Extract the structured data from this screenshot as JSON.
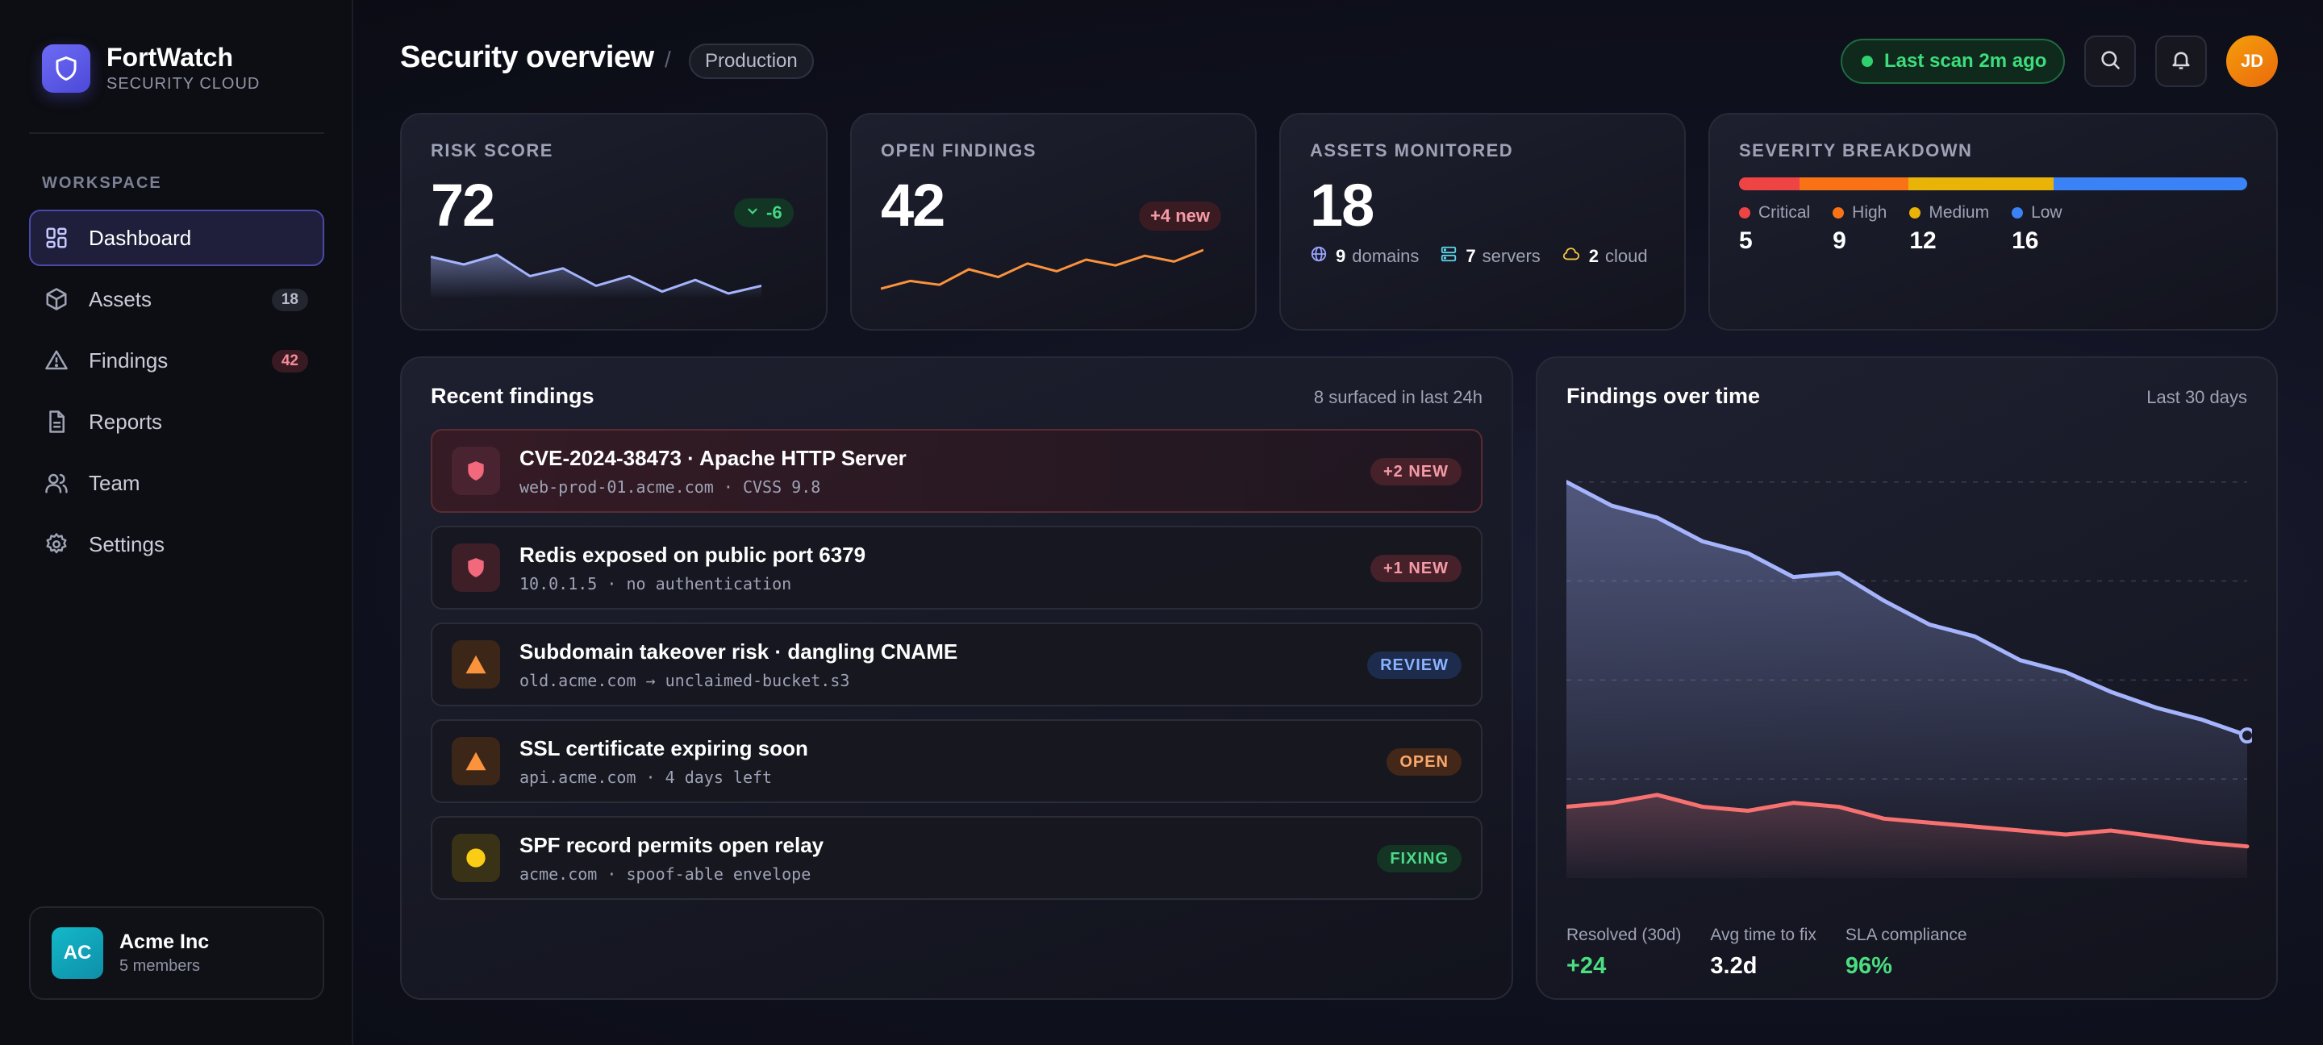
{
  "brand": {
    "name": "FortWatch",
    "subtitle": "SECURITY CLOUD"
  },
  "nav": {
    "section_title": "WORKSPACE",
    "items": [
      {
        "label": "Dashboard",
        "icon": "dashboard-icon",
        "active": true
      },
      {
        "label": "Assets",
        "icon": "cube-icon",
        "badge": "18"
      },
      {
        "label": "Findings",
        "icon": "warning-icon",
        "badge": "42"
      },
      {
        "label": "Reports",
        "icon": "document-icon"
      },
      {
        "label": "Team",
        "icon": "users-icon"
      },
      {
        "label": "Settings",
        "icon": "gear-icon"
      }
    ]
  },
  "org": {
    "initials": "AC",
    "name": "Acme Inc",
    "members": "5 members"
  },
  "header": {
    "title": "Security overview",
    "separator": "/",
    "environment": "Production",
    "scan_status": "Last scan 2m ago",
    "user_initials": "JD"
  },
  "stats": {
    "risk": {
      "label": "RISK SCORE",
      "value": "72",
      "delta": "-6",
      "trend": [
        60,
        52,
        62,
        40,
        48,
        30,
        40,
        24,
        36,
        22,
        30
      ]
    },
    "findings": {
      "label": "OPEN FINDINGS",
      "value": "42",
      "delta": "+4 new",
      "trend": [
        18,
        26,
        22,
        38,
        30,
        44,
        36,
        48,
        42,
        52,
        46,
        58
      ]
    },
    "assets": {
      "label": "ASSETS MONITORED",
      "value": "18",
      "items": [
        {
          "count": "9",
          "label": "domains",
          "icon": "globe-icon"
        },
        {
          "count": "7",
          "label": "servers",
          "icon": "server-icon"
        },
        {
          "count": "2",
          "label": "cloud",
          "icon": "cloud-icon"
        }
      ]
    },
    "severity": {
      "label": "SEVERITY BREAKDOWN",
      "items": [
        {
          "name": "Critical",
          "count": "5",
          "value": 5,
          "color": "#ef4444"
        },
        {
          "name": "High",
          "count": "9",
          "value": 9,
          "color": "#f97316"
        },
        {
          "name": "Medium",
          "count": "12",
          "value": 12,
          "color": "#eab308"
        },
        {
          "name": "Low",
          "count": "16",
          "value": 16,
          "color": "#3b82f6"
        }
      ]
    }
  },
  "recent": {
    "title": "Recent findings",
    "meta": "8 surfaced in last 24h",
    "items": [
      {
        "title": "CVE-2024-38473 · Apache HTTP Server",
        "detail": "web-prod-01.acme.com · CVSS 9.8",
        "tag": "+2 NEW",
        "icon": "shield-icon"
      },
      {
        "title": "Redis exposed on public port 6379",
        "detail": "10.0.1.5 · no authentication",
        "tag": "+1 NEW",
        "icon": "shield-icon"
      },
      {
        "title": "Subdomain takeover risk · dangling CNAME",
        "detail": "old.acme.com → unclaimed-bucket.s3",
        "tag": "REVIEW",
        "icon": "triangle-icon"
      },
      {
        "title": "SSL certificate expiring soon",
        "detail": "api.acme.com · 4 days left",
        "tag": "OPEN",
        "icon": "triangle-icon"
      },
      {
        "title": "SPF record permits open relay",
        "detail": "acme.com · spoof-able envelope",
        "tag": "FIXING",
        "icon": "circle-icon"
      }
    ]
  },
  "chart_data": {
    "type": "area",
    "title": "Findings over time",
    "subtitle": "Last 30 days",
    "xlabel": "",
    "ylabel": "",
    "grid": true,
    "series": [
      {
        "color": "#a5b4fc",
        "values": [
          100,
          94,
          91,
          85,
          82,
          76,
          77,
          70,
          64,
          61,
          55,
          52,
          47,
          43,
          40,
          36
        ]
      },
      {
        "color": "#f87171",
        "values": [
          18,
          19,
          21,
          18,
          17,
          19,
          18,
          15,
          14,
          13,
          12,
          11,
          12,
          10.5,
          9,
          8
        ]
      }
    ],
    "ylim": [
      0,
      115
    ]
  },
  "chart_stats": [
    {
      "label": "Resolved (30d)",
      "value": "+24",
      "color": "#4ade80"
    },
    {
      "label": "Avg time to fix",
      "value": "3.2d",
      "color": "#ffffff"
    },
    {
      "label": "SLA compliance",
      "value": "96%",
      "color": "#4ade80"
    }
  ]
}
